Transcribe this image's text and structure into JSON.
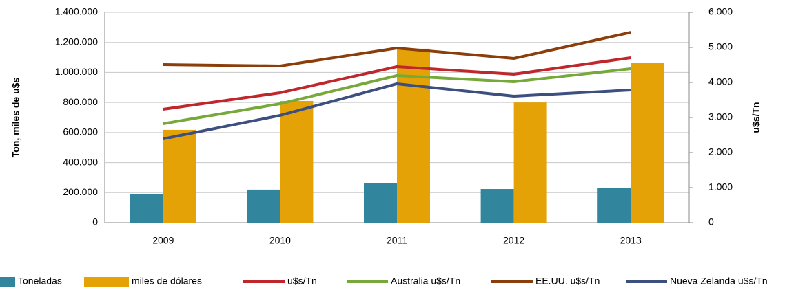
{
  "chart_data": {
    "type": "bar",
    "categories": [
      "2009",
      "2010",
      "2011",
      "2012",
      "2013"
    ],
    "y_label": "Ton, miles de u$s",
    "y2_label": "u$s/Tn",
    "ylim": [
      0,
      1400000
    ],
    "yticks": [
      0,
      {
        "value": 200000,
        "label": "200.000"
      },
      {
        "value": 400000,
        "label": "400.000"
      },
      {
        "value": 600000,
        "label": "600.000"
      },
      {
        "value": 800000,
        "label": "800.000"
      },
      {
        "value": 1000000,
        "label": "1.000.000"
      },
      {
        "value": 1200000,
        "label": "1.200.000"
      },
      {
        "value": 1400000,
        "label": "1.400.000"
      }
    ],
    "y2lim": [
      0,
      6000
    ],
    "y2ticks": [
      0,
      {
        "value": 1000,
        "label": "1.000"
      },
      {
        "value": 2000,
        "label": "2.000"
      },
      {
        "value": 3000,
        "label": "3.000"
      },
      {
        "value": 4000,
        "label": "4.000"
      },
      {
        "value": 5000,
        "label": "5.000"
      },
      {
        "value": 6000,
        "label": "6.000"
      }
    ],
    "grid": true,
    "legend": "bottom",
    "series": [
      {
        "name": "Toneladas",
        "type": "bar",
        "color": "#31859c",
        "values": [
          192000,
          220000,
          261000,
          224000,
          229000
        ]
      },
      {
        "name": "miles de dólares",
        "type": "bar",
        "color": "#e5a207",
        "values": [
          618000,
          810000,
          1158000,
          800000,
          1066000
        ]
      },
      {
        "name": "u$s/Tn",
        "type": "line",
        "axis": "y2",
        "color": "#c0272d",
        "values": [
          3235,
          3706,
          4451,
          4235,
          4706
        ]
      },
      {
        "name": "Australia u$s/Tn",
        "type": "line",
        "axis": "y2",
        "color": "#77a83a",
        "values": [
          2824,
          3392,
          4196,
          4020,
          4392
        ]
      },
      {
        "name": "EE.UU. u$s/Tn",
        "type": "line",
        "axis": "y2",
        "color": "#8b3e0c",
        "values": [
          4510,
          4471,
          4980,
          4686,
          5431
        ]
      },
      {
        "name": "Nueva Zelanda u$s/Tn",
        "type": "line",
        "axis": "y2",
        "color": "#3c4f7f",
        "values": [
          2392,
          3059,
          3961,
          3608,
          3784
        ]
      }
    ]
  }
}
